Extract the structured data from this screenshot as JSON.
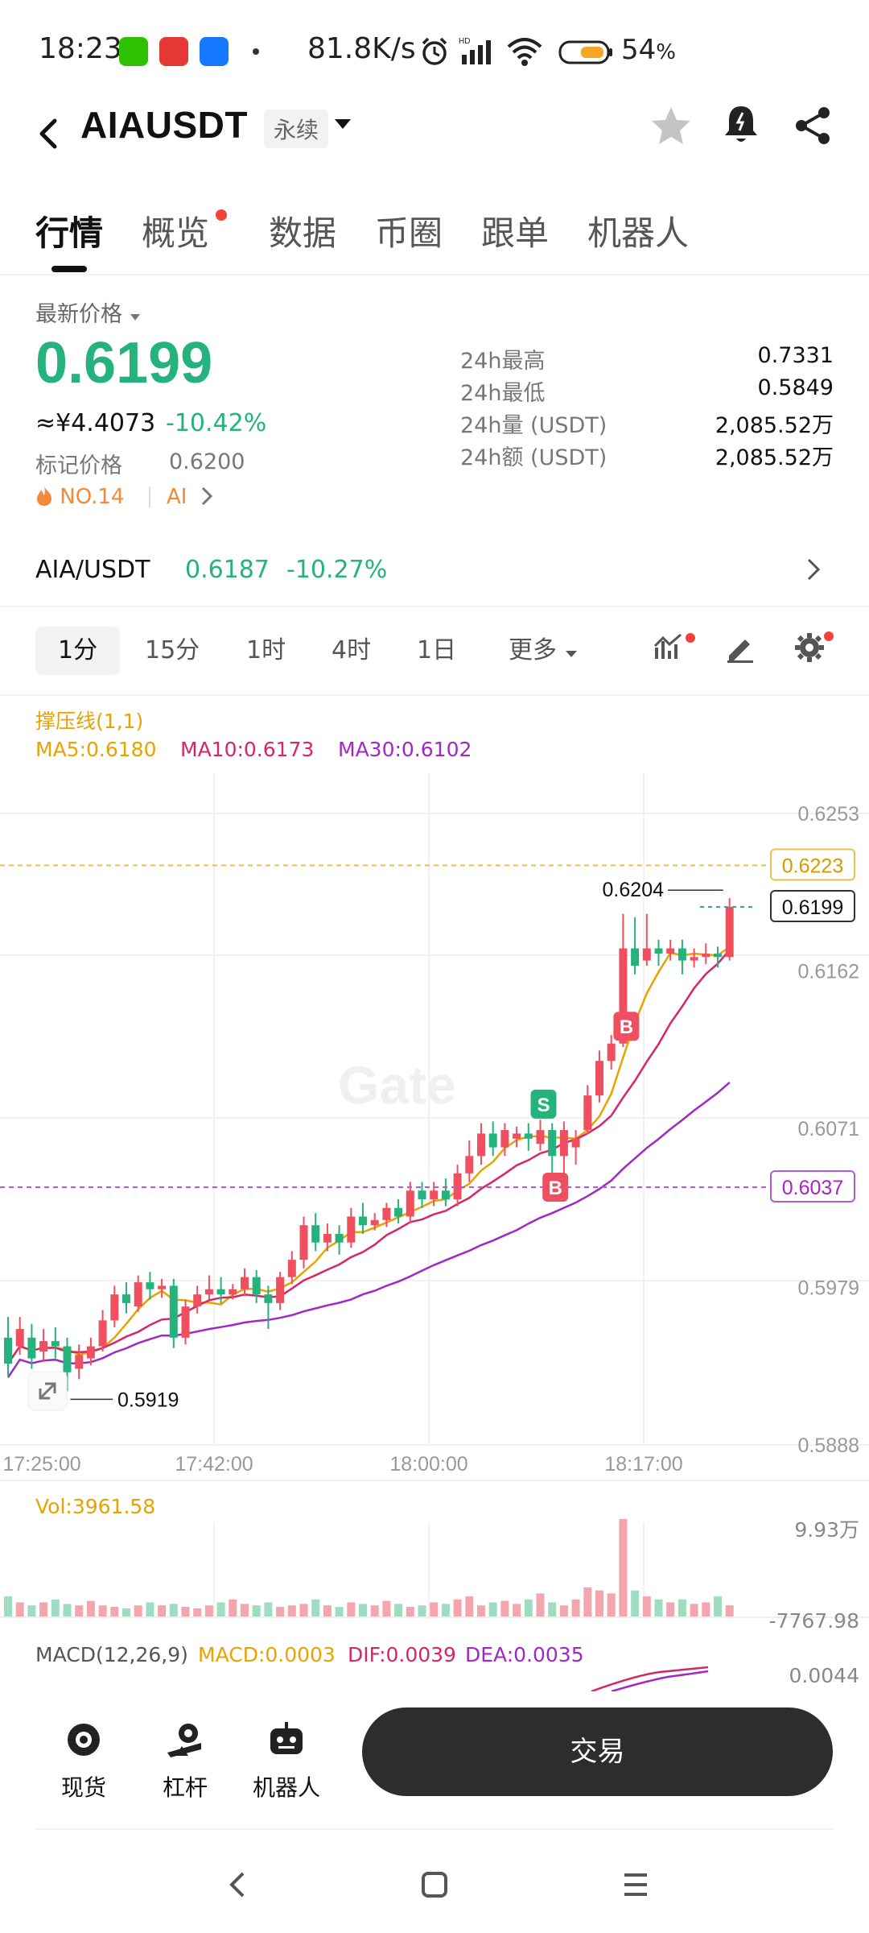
{
  "status_bar": {
    "time": "18:23",
    "net_speed": "81.8K/s",
    "battery_pct": "54",
    "battery_unit": "%",
    "app_icons": [
      {
        "name": "wechat-icon",
        "color": "#2dc100"
      },
      {
        "name": "news-app-icon",
        "color": "#e53935"
      },
      {
        "name": "alipay-icon",
        "color": "#1677ff"
      }
    ]
  },
  "header": {
    "title": "AIAUSDT",
    "contract_type": "永续"
  },
  "tabs": [
    {
      "label": "行情",
      "active": true
    },
    {
      "label": "概览",
      "active": false,
      "badge": true
    },
    {
      "label": "数据",
      "active": false
    },
    {
      "label": "币圈",
      "active": false
    },
    {
      "label": "跟单",
      "active": false
    },
    {
      "label": "机器人",
      "active": false
    }
  ],
  "price": {
    "label": "最新价格",
    "last": "0.6199",
    "cny": "≈¥4.4073",
    "change": "-10.42%",
    "mark_label": "标记价格",
    "mark_value": "0.6200",
    "rank": "NO.14",
    "tag": "AI"
  },
  "stats": [
    {
      "label": "24h最高",
      "value": "0.7331"
    },
    {
      "label": "24h最低",
      "value": "0.5849"
    },
    {
      "label": "24h量 (USDT)",
      "value": "2,085.52万"
    },
    {
      "label": "24h额 (USDT)",
      "value": "2,085.52万"
    }
  ],
  "spot": {
    "pair": "AIA/USDT",
    "price": "0.6187",
    "change": "-10.27%"
  },
  "intervals": [
    {
      "label": "1分",
      "active": true
    },
    {
      "label": "15分",
      "active": false
    },
    {
      "label": "1时",
      "active": false
    },
    {
      "label": "4时",
      "active": false
    },
    {
      "label": "1日",
      "active": false
    },
    {
      "label": "更多",
      "active": false
    }
  ],
  "indicators": {
    "title": "撑压线(1,1)",
    "ma5": "MA5:0.6180",
    "ma10": "MA10:0.6173",
    "ma30": "MA30:0.6102",
    "colors": {
      "ma5": "#e8a300",
      "ma10": "#d6266a",
      "ma30": "#a128c4",
      "up": "#25b27c",
      "down": "#ef4f5f"
    }
  },
  "chart_data": {
    "type": "candlestick",
    "y_ticks": [
      "0.6253",
      "0.6162",
      "0.6071",
      "0.5979",
      "0.5888"
    ],
    "y_range": [
      0.5888,
      0.6253
    ],
    "x_ticks": [
      "17:25:00",
      "17:42:00",
      "18:00:00",
      "18:17:00"
    ],
    "resistance_line": "0.6223",
    "support_line": "0.6037",
    "current_price": "0.6199",
    "high_marker": "0.6204",
    "low_marker": "0.5919",
    "trade_markers": [
      "S",
      "B",
      "B"
    ],
    "candles": [
      {
        "o": 0.595,
        "c": 0.5935,
        "h": 0.5962,
        "l": 0.5928
      },
      {
        "o": 0.5945,
        "c": 0.5955,
        "h": 0.5962,
        "l": 0.594
      },
      {
        "o": 0.595,
        "c": 0.5938,
        "h": 0.5958,
        "l": 0.5932
      },
      {
        "o": 0.5942,
        "c": 0.5948,
        "h": 0.5955,
        "l": 0.5936
      },
      {
        "o": 0.5948,
        "c": 0.5945,
        "h": 0.5956,
        "l": 0.5938
      },
      {
        "o": 0.5945,
        "c": 0.593,
        "h": 0.595,
        "l": 0.5919
      },
      {
        "o": 0.5932,
        "c": 0.594,
        "h": 0.5946,
        "l": 0.5926
      },
      {
        "o": 0.5938,
        "c": 0.5945,
        "h": 0.595,
        "l": 0.5934
      },
      {
        "o": 0.5945,
        "c": 0.596,
        "h": 0.5966,
        "l": 0.5942
      },
      {
        "o": 0.596,
        "c": 0.5975,
        "h": 0.598,
        "l": 0.5956
      },
      {
        "o": 0.5975,
        "c": 0.597,
        "h": 0.5982,
        "l": 0.5964
      },
      {
        "o": 0.5968,
        "c": 0.5982,
        "h": 0.5986,
        "l": 0.5965
      },
      {
        "o": 0.5982,
        "c": 0.5978,
        "h": 0.5988,
        "l": 0.5972
      },
      {
        "o": 0.5978,
        "c": 0.598,
        "h": 0.5984,
        "l": 0.5973
      },
      {
        "o": 0.598,
        "c": 0.595,
        "h": 0.5984,
        "l": 0.5944
      },
      {
        "o": 0.595,
        "c": 0.5968,
        "h": 0.5972,
        "l": 0.5946
      },
      {
        "o": 0.5968,
        "c": 0.5975,
        "h": 0.598,
        "l": 0.5964
      },
      {
        "o": 0.5975,
        "c": 0.5978,
        "h": 0.5986,
        "l": 0.5972
      },
      {
        "o": 0.5978,
        "c": 0.5975,
        "h": 0.5985,
        "l": 0.597
      },
      {
        "o": 0.5975,
        "c": 0.5978,
        "h": 0.5981,
        "l": 0.5972
      },
      {
        "o": 0.5978,
        "c": 0.5985,
        "h": 0.599,
        "l": 0.5974
      },
      {
        "o": 0.5985,
        "c": 0.5975,
        "h": 0.5989,
        "l": 0.597
      },
      {
        "o": 0.5975,
        "c": 0.597,
        "h": 0.598,
        "l": 0.5955
      },
      {
        "o": 0.597,
        "c": 0.5985,
        "h": 0.5988,
        "l": 0.5966
      },
      {
        "o": 0.5985,
        "c": 0.5995,
        "h": 0.6,
        "l": 0.5981
      },
      {
        "o": 0.5995,
        "c": 0.6015,
        "h": 0.602,
        "l": 0.599
      },
      {
        "o": 0.6015,
        "c": 0.6005,
        "h": 0.6022,
        "l": 0.6
      },
      {
        "o": 0.6005,
        "c": 0.601,
        "h": 0.6016,
        "l": 0.6
      },
      {
        "o": 0.601,
        "c": 0.6005,
        "h": 0.6015,
        "l": 0.5998
      },
      {
        "o": 0.6005,
        "c": 0.602,
        "h": 0.6025,
        "l": 0.6002
      },
      {
        "o": 0.602,
        "c": 0.6015,
        "h": 0.6028,
        "l": 0.601
      },
      {
        "o": 0.6015,
        "c": 0.6018,
        "h": 0.6022,
        "l": 0.6012
      },
      {
        "o": 0.6018,
        "c": 0.6025,
        "h": 0.6028,
        "l": 0.6014
      },
      {
        "o": 0.6025,
        "c": 0.602,
        "h": 0.603,
        "l": 0.6016
      },
      {
        "o": 0.602,
        "c": 0.6035,
        "h": 0.604,
        "l": 0.6016
      },
      {
        "o": 0.6035,
        "c": 0.603,
        "h": 0.604,
        "l": 0.6025
      },
      {
        "o": 0.603,
        "c": 0.6035,
        "h": 0.604,
        "l": 0.6026
      },
      {
        "o": 0.6035,
        "c": 0.603,
        "h": 0.6042,
        "l": 0.6026
      },
      {
        "o": 0.603,
        "c": 0.6045,
        "h": 0.605,
        "l": 0.6026
      },
      {
        "o": 0.6045,
        "c": 0.6055,
        "h": 0.6064,
        "l": 0.604
      },
      {
        "o": 0.6055,
        "c": 0.6068,
        "h": 0.6074,
        "l": 0.605
      },
      {
        "o": 0.6068,
        "c": 0.606,
        "h": 0.6075,
        "l": 0.6055
      },
      {
        "o": 0.606,
        "c": 0.607,
        "h": 0.6074,
        "l": 0.6055
      },
      {
        "o": 0.6065,
        "c": 0.6068,
        "h": 0.6072,
        "l": 0.606
      },
      {
        "o": 0.6068,
        "c": 0.6065,
        "h": 0.6074,
        "l": 0.6058
      },
      {
        "o": 0.6062,
        "c": 0.607,
        "h": 0.6076,
        "l": 0.6058
      },
      {
        "o": 0.607,
        "c": 0.6055,
        "h": 0.6074,
        "l": 0.6042
      },
      {
        "o": 0.6055,
        "c": 0.607,
        "h": 0.6075,
        "l": 0.6045
      },
      {
        "o": 0.606,
        "c": 0.6065,
        "h": 0.607,
        "l": 0.605
      },
      {
        "o": 0.607,
        "c": 0.609,
        "h": 0.6096,
        "l": 0.6068
      },
      {
        "o": 0.609,
        "c": 0.611,
        "h": 0.6116,
        "l": 0.6086
      },
      {
        "o": 0.611,
        "c": 0.612,
        "h": 0.6125,
        "l": 0.6105
      },
      {
        "o": 0.612,
        "c": 0.6175,
        "h": 0.6195,
        "l": 0.6118
      },
      {
        "o": 0.6175,
        "c": 0.6165,
        "h": 0.6193,
        "l": 0.616
      },
      {
        "o": 0.6168,
        "c": 0.6175,
        "h": 0.6195,
        "l": 0.6165
      },
      {
        "o": 0.6175,
        "c": 0.6172,
        "h": 0.618,
        "l": 0.6165
      },
      {
        "o": 0.6172,
        "c": 0.6175,
        "h": 0.618,
        "l": 0.6168
      },
      {
        "o": 0.6175,
        "c": 0.6168,
        "h": 0.618,
        "l": 0.616
      },
      {
        "o": 0.6168,
        "c": 0.617,
        "h": 0.6175,
        "l": 0.6164
      },
      {
        "o": 0.617,
        "c": 0.6172,
        "h": 0.6178,
        "l": 0.6166
      },
      {
        "o": 0.6172,
        "c": 0.617,
        "h": 0.6176,
        "l": 0.6164
      },
      {
        "o": 0.617,
        "c": 0.6199,
        "h": 0.6204,
        "l": 0.6168
      }
    ]
  },
  "volume": {
    "label": "Vol:3961.58",
    "max_label": "9.93万",
    "min_label": "-7767.98",
    "bars": [
      14,
      10,
      8,
      10,
      12,
      9,
      8,
      11,
      8,
      7,
      6,
      8,
      10,
      8,
      9,
      7,
      6,
      8,
      10,
      12,
      9,
      8,
      10,
      7,
      8,
      9,
      12,
      8,
      7,
      10,
      9,
      8,
      11,
      9,
      7,
      8,
      10,
      9,
      12,
      14,
      8,
      10,
      11,
      9,
      12,
      16,
      10,
      8,
      12,
      20,
      18,
      16,
      66,
      18,
      14,
      12,
      10,
      12,
      9,
      10,
      14,
      8
    ]
  },
  "macd": {
    "title": "MACD(12,26,9)",
    "macd": "MACD:0.0003",
    "dif": "DIF:0.0039",
    "dea": "DEA:0.0035",
    "axis_label": "0.0044"
  },
  "watermark": "Gate",
  "bottom_bar": {
    "spot_label": "现货",
    "leverage_label": "杠杆",
    "bot_label": "机器人",
    "trade_label": "交易"
  }
}
